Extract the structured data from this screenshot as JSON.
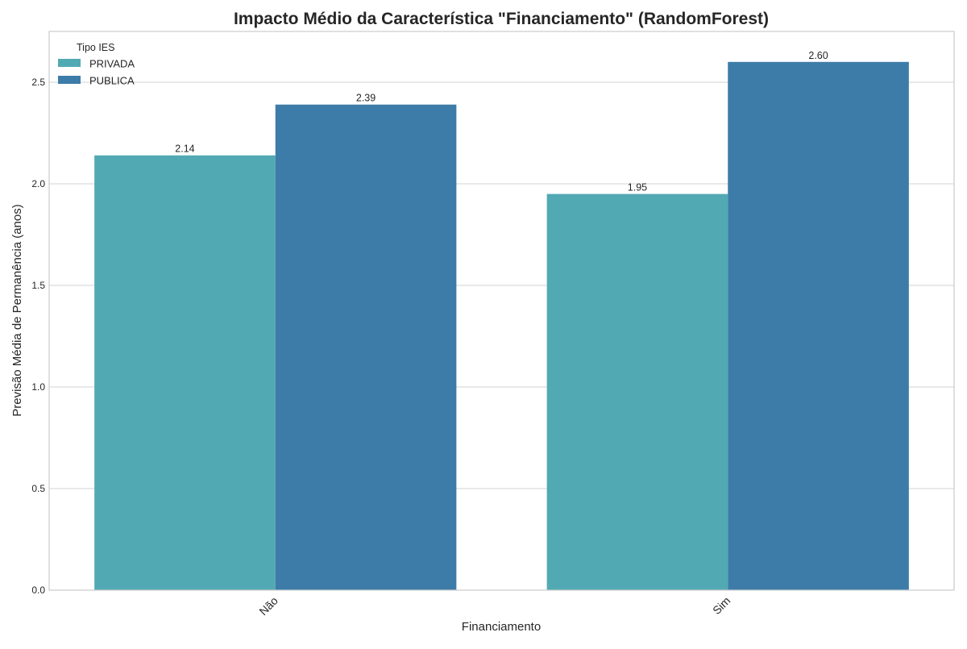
{
  "chart_data": {
    "type": "bar",
    "title": "Impacto Médio da Característica \"Financiamento\" (RandomForest)",
    "xlabel": "Financiamento",
    "ylabel": "Previsão Média de Permanência (anos)",
    "categories": [
      "Não",
      "Sim"
    ],
    "series": [
      {
        "name": "PRIVADA",
        "values": [
          2.14,
          1.95
        ],
        "labels": [
          "2.14",
          "1.95"
        ],
        "color": "#51a9b3"
      },
      {
        "name": "PUBLICA",
        "values": [
          2.39,
          2.6
        ],
        "labels": [
          "2.39",
          "2.60"
        ],
        "color": "#3d7ca8"
      }
    ],
    "ylim": [
      0,
      2.75
    ],
    "yticks": [
      0.0,
      0.5,
      1.0,
      1.5,
      2.0,
      2.5
    ],
    "ytick_labels": [
      "0.0",
      "0.5",
      "1.0",
      "1.5",
      "2.0",
      "2.5"
    ],
    "grid": "horizontal",
    "legend": {
      "title": "Tipo IES",
      "position": "top-left"
    },
    "xtick_rotation": 45
  }
}
